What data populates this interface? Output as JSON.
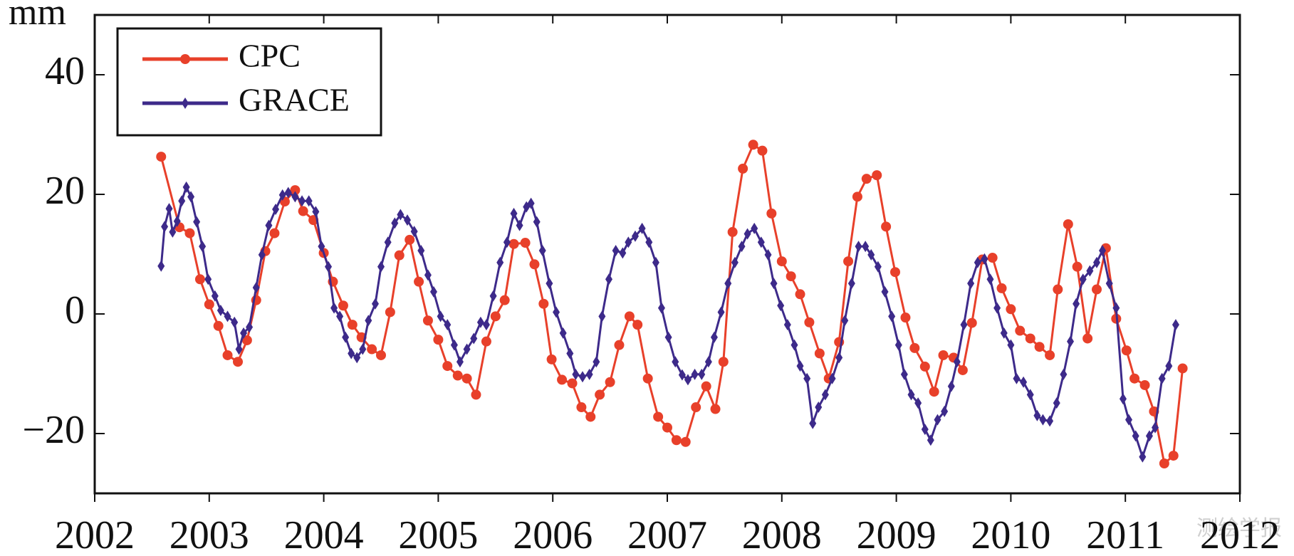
{
  "chart_data": {
    "type": "line",
    "ylabel": "mm",
    "xlim": [
      2002,
      2012
    ],
    "xticks": [
      2002,
      2003,
      2004,
      2005,
      2006,
      2007,
      2008,
      2009,
      2010,
      2011,
      2012
    ],
    "ylim": [
      -30,
      50
    ],
    "yticks": [
      {
        "value": -20,
        "label": "−20"
      },
      0,
      20,
      40
    ],
    "legend": "upper left",
    "watermark": "测绘学报",
    "series": [
      {
        "name": "CPC",
        "color": "#e8402a",
        "marker": "circle",
        "x": [
          2002.58,
          2002.74,
          2002.83,
          2002.92,
          2003.0,
          2003.08,
          2003.16,
          2003.25,
          2003.33,
          2003.41,
          2003.49,
          2003.57,
          2003.66,
          2003.75,
          2003.82,
          2003.91,
          2004.0,
          2004.08,
          2004.17,
          2004.25,
          2004.33,
          2004.42,
          2004.5,
          2004.58,
          2004.66,
          2004.75,
          2004.83,
          2004.91,
          2005.0,
          2005.08,
          2005.17,
          2005.25,
          2005.33,
          2005.42,
          2005.5,
          2005.58,
          2005.66,
          2005.76,
          2005.84,
          2005.92,
          2005.99,
          2006.08,
          2006.17,
          2006.25,
          2006.33,
          2006.41,
          2006.5,
          2006.58,
          2006.67,
          2006.74,
          2006.83,
          2006.92,
          2007.0,
          2007.08,
          2007.16,
          2007.25,
          2007.34,
          2007.42,
          2007.49,
          2007.57,
          2007.66,
          2007.75,
          2007.83,
          2007.91,
          2008.0,
          2008.08,
          2008.16,
          2008.24,
          2008.33,
          2008.41,
          2008.5,
          2008.58,
          2008.66,
          2008.74,
          2008.83,
          2008.91,
          2008.99,
          2009.08,
          2009.16,
          2009.25,
          2009.33,
          2009.41,
          2009.5,
          2009.58,
          2009.66,
          2009.75,
          2009.84,
          2009.92,
          2010.0,
          2010.08,
          2010.17,
          2010.25,
          2010.34,
          2010.41,
          2010.5,
          2010.58,
          2010.67,
          2010.75,
          2010.83,
          2010.92,
          2011.01,
          2011.08,
          2011.17,
          2011.25,
          2011.34,
          2011.42,
          2011.5
        ],
        "values": [
          26.3,
          14.5,
          13.5,
          5.8,
          1.6,
          -2,
          -6.9,
          -8,
          -4.4,
          2.3,
          10.5,
          13.5,
          18.8,
          20.7,
          17.2,
          15.7,
          10.2,
          5.4,
          1.4,
          -1.8,
          -3.9,
          -5.9,
          -6.9,
          0.3,
          9.8,
          12.4,
          5.4,
          -1.1,
          -4.3,
          -8.7,
          -10.3,
          -10.8,
          -13.5,
          -4.6,
          -0.4,
          2.3,
          11.7,
          11.9,
          8.3,
          1.7,
          -7.6,
          -11,
          -11.6,
          -15.6,
          -17.2,
          -13.5,
          -11.4,
          -5.2,
          -0.4,
          -1.8,
          -10.8,
          -17.2,
          -19,
          -21.1,
          -21.4,
          -15.6,
          -12.1,
          -15.9,
          -8,
          13.7,
          24.3,
          28.3,
          27.3,
          16.8,
          8.8,
          6.3,
          3.3,
          -1.4,
          -6.6,
          -10.8,
          -4.7,
          8.8,
          19.6,
          22.6,
          23.2,
          14.6,
          7,
          -0.6,
          -5.7,
          -8.8,
          -13,
          -6.9,
          -7.3,
          -9.4,
          -1.5,
          9.1,
          9.4,
          4.3,
          0.8,
          -2.8,
          -4.1,
          -5.5,
          -6.9,
          4.1,
          15,
          7.9,
          -4.1,
          4.1,
          11,
          -0.8,
          -6.1,
          -10.8,
          -11.9,
          -16.3,
          -25,
          -23.7,
          -9.1
        ]
      },
      {
        "name": "GRACE",
        "color": "#3d2a8a",
        "marker": "diamond",
        "x": [
          2002.58,
          2002.61,
          2002.65,
          2002.68,
          2002.72,
          2002.76,
          2002.8,
          2002.84,
          2002.89,
          2002.94,
          2002.99,
          2003.05,
          2003.1,
          2003.16,
          2003.22,
          2003.26,
          2003.3,
          2003.35,
          2003.41,
          2003.46,
          2003.52,
          2003.58,
          2003.64,
          2003.69,
          2003.75,
          2003.81,
          2003.87,
          2003.93,
          2003.98,
          2004.04,
          2004.09,
          2004.14,
          2004.19,
          2004.24,
          2004.29,
          2004.34,
          2004.39,
          2004.45,
          2004.5,
          2004.56,
          2004.62,
          2004.67,
          2004.73,
          2004.79,
          2004.85,
          2004.91,
          2004.96,
          2005.02,
          2005.08,
          2005.14,
          2005.19,
          2005.25,
          2005.31,
          2005.37,
          2005.42,
          2005.48,
          2005.54,
          2005.6,
          2005.66,
          2005.71,
          2005.77,
          2005.81,
          2005.86,
          2005.91,
          2005.97,
          2006.03,
          2006.09,
          2006.15,
          2006.2,
          2006.26,
          2006.32,
          2006.38,
          2006.43,
          2006.49,
          2006.55,
          2006.61,
          2006.66,
          2006.72,
          2006.78,
          2006.84,
          2006.9,
          2006.95,
          2007.01,
          2007.07,
          2007.13,
          2007.18,
          2007.24,
          2007.3,
          2007.36,
          2007.41,
          2007.47,
          2007.53,
          2007.59,
          2007.65,
          2007.7,
          2007.76,
          2007.82,
          2007.88,
          2007.93,
          2007.99,
          2008.05,
          2008.11,
          2008.16,
          2008.22,
          2008.27,
          2008.32,
          2008.38,
          2008.44,
          2008.5,
          2008.55,
          2008.61,
          2008.67,
          2008.73,
          2008.78,
          2008.84,
          2008.9,
          2008.96,
          2009.02,
          2009.07,
          2009.13,
          2009.19,
          2009.25,
          2009.3,
          2009.36,
          2009.42,
          2009.48,
          2009.53,
          2009.59,
          2009.65,
          2009.71,
          2009.77,
          2009.82,
          2009.88,
          2009.94,
          2010.0,
          2010.05,
          2010.11,
          2010.17,
          2010.23,
          2010.28,
          2010.34,
          2010.4,
          2010.46,
          2010.52,
          2010.57,
          2010.63,
          2010.69,
          2010.75,
          2010.8,
          2010.86,
          2010.92,
          2010.98,
          2011.03,
          2011.09,
          2011.15,
          2011.21,
          2011.26,
          2011.32,
          2011.38,
          2011.44
        ],
        "values": [
          8,
          14.6,
          17.6,
          13.7,
          15.5,
          18.9,
          21.2,
          19.6,
          15.4,
          11.3,
          5.8,
          3,
          0.6,
          -0.4,
          -1.4,
          -5.9,
          -3.2,
          -2.2,
          4.4,
          9.9,
          14.8,
          17.5,
          19.9,
          20.3,
          19.6,
          18.9,
          18.9,
          17.1,
          11.3,
          7.9,
          1,
          -0.4,
          -3.9,
          -6.6,
          -7.3,
          -5.9,
          -1.1,
          1.7,
          7.9,
          12,
          15.2,
          16.6,
          15.7,
          13.8,
          10.6,
          6.5,
          3.7,
          -0.4,
          -1.8,
          -5.2,
          -8,
          -5.9,
          -4.1,
          -1.4,
          -1.8,
          3,
          8.6,
          12,
          16.8,
          14.8,
          17.9,
          18.5,
          15.4,
          10.6,
          5.1,
          0.3,
          -3.2,
          -6.6,
          -10.1,
          -10.5,
          -10.1,
          -8,
          -0.4,
          5.8,
          10.6,
          10.2,
          12,
          13,
          14.3,
          12,
          8.6,
          1,
          -3.9,
          -8,
          -10.2,
          -11,
          -10.1,
          -10.1,
          -8,
          -3.9,
          0.3,
          5.1,
          8.6,
          11.3,
          13.4,
          14.3,
          12,
          9.9,
          5.1,
          1.4,
          -1.8,
          -5.2,
          -8.7,
          -10.8,
          -18.3,
          -15.6,
          -13.5,
          -10.8,
          -7.3,
          -1.1,
          5.1,
          11.3,
          11.3,
          9.9,
          7.9,
          3.7,
          -0.4,
          -5.2,
          -10.1,
          -13.5,
          -14.9,
          -19.3,
          -21.1,
          -17.7,
          -16.3,
          -12.1,
          -8,
          -1.8,
          5.1,
          8.6,
          9.2,
          5.8,
          1,
          -3.2,
          -5.2,
          -10.8,
          -11.4,
          -13.5,
          -17,
          -17.7,
          -17.9,
          -14.9,
          -10.1,
          -4.6,
          1.7,
          5.8,
          7.2,
          8.6,
          10.6,
          5.1,
          1,
          -14.2,
          -17.7,
          -20.4,
          -23.9,
          -20.4,
          -19,
          -10.8,
          -8.7,
          -1.8
        ]
      }
    ]
  }
}
